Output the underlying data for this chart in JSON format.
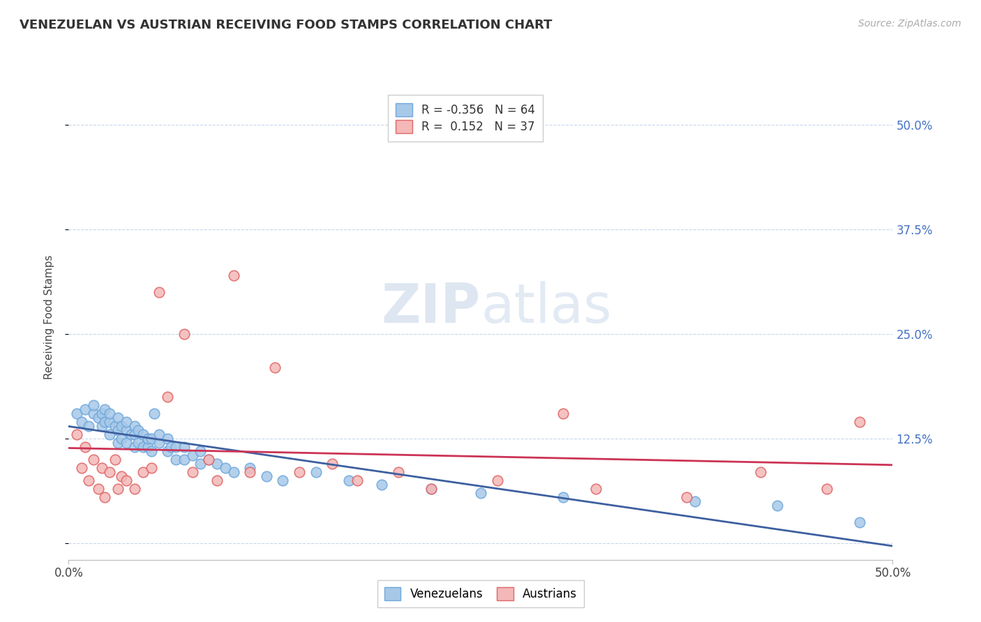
{
  "title": "VENEZUELAN VS AUSTRIAN RECEIVING FOOD STAMPS CORRELATION CHART",
  "source": "Source: ZipAtlas.com",
  "ylabel": "Receiving Food Stamps",
  "xlim": [
    0.0,
    0.5
  ],
  "ylim": [
    -0.02,
    0.56
  ],
  "yticks": [
    0.0,
    0.125,
    0.25,
    0.375,
    0.5
  ],
  "ytick_labels": [
    "",
    "12.5%",
    "25.0%",
    "37.5%",
    "50.0%"
  ],
  "blue_color": "#9fc5e8",
  "pink_color": "#ea9999",
  "blue_fill": "#a8c8e8",
  "pink_fill": "#f4b8b8",
  "blue_edge": "#6fa8dc",
  "pink_edge": "#e06666",
  "blue_line_color": "#3d5fa0",
  "pink_line_color": "#cc3355",
  "grid_color": "#c8d8ea",
  "background_color": "#ffffff",
  "venezuelan_x": [
    0.005,
    0.008,
    0.01,
    0.012,
    0.015,
    0.015,
    0.018,
    0.02,
    0.02,
    0.022,
    0.022,
    0.025,
    0.025,
    0.025,
    0.028,
    0.03,
    0.03,
    0.03,
    0.032,
    0.032,
    0.035,
    0.035,
    0.035,
    0.038,
    0.04,
    0.04,
    0.04,
    0.042,
    0.042,
    0.045,
    0.045,
    0.048,
    0.048,
    0.05,
    0.05,
    0.052,
    0.055,
    0.055,
    0.06,
    0.06,
    0.062,
    0.065,
    0.065,
    0.07,
    0.07,
    0.075,
    0.08,
    0.08,
    0.085,
    0.09,
    0.095,
    0.1,
    0.11,
    0.12,
    0.13,
    0.15,
    0.17,
    0.19,
    0.22,
    0.25,
    0.3,
    0.38,
    0.43,
    0.48
  ],
  "venezuelan_y": [
    0.155,
    0.145,
    0.16,
    0.14,
    0.155,
    0.165,
    0.15,
    0.14,
    0.155,
    0.145,
    0.16,
    0.13,
    0.145,
    0.155,
    0.14,
    0.12,
    0.135,
    0.15,
    0.125,
    0.14,
    0.12,
    0.135,
    0.145,
    0.13,
    0.115,
    0.13,
    0.14,
    0.12,
    0.135,
    0.115,
    0.13,
    0.115,
    0.125,
    0.11,
    0.125,
    0.155,
    0.12,
    0.13,
    0.11,
    0.125,
    0.115,
    0.1,
    0.115,
    0.1,
    0.115,
    0.105,
    0.095,
    0.11,
    0.1,
    0.095,
    0.09,
    0.085,
    0.09,
    0.08,
    0.075,
    0.085,
    0.075,
    0.07,
    0.065,
    0.06,
    0.055,
    0.05,
    0.045,
    0.025
  ],
  "austrian_x": [
    0.005,
    0.008,
    0.01,
    0.012,
    0.015,
    0.018,
    0.02,
    0.022,
    0.025,
    0.028,
    0.03,
    0.032,
    0.035,
    0.04,
    0.045,
    0.05,
    0.055,
    0.06,
    0.07,
    0.075,
    0.085,
    0.09,
    0.1,
    0.11,
    0.125,
    0.14,
    0.16,
    0.175,
    0.2,
    0.22,
    0.26,
    0.3,
    0.32,
    0.375,
    0.42,
    0.46,
    0.48
  ],
  "austrian_y": [
    0.13,
    0.09,
    0.115,
    0.075,
    0.1,
    0.065,
    0.09,
    0.055,
    0.085,
    0.1,
    0.065,
    0.08,
    0.075,
    0.065,
    0.085,
    0.09,
    0.3,
    0.175,
    0.25,
    0.085,
    0.1,
    0.075,
    0.32,
    0.085,
    0.21,
    0.085,
    0.095,
    0.075,
    0.085,
    0.065,
    0.075,
    0.155,
    0.065,
    0.055,
    0.085,
    0.065,
    0.145
  ]
}
